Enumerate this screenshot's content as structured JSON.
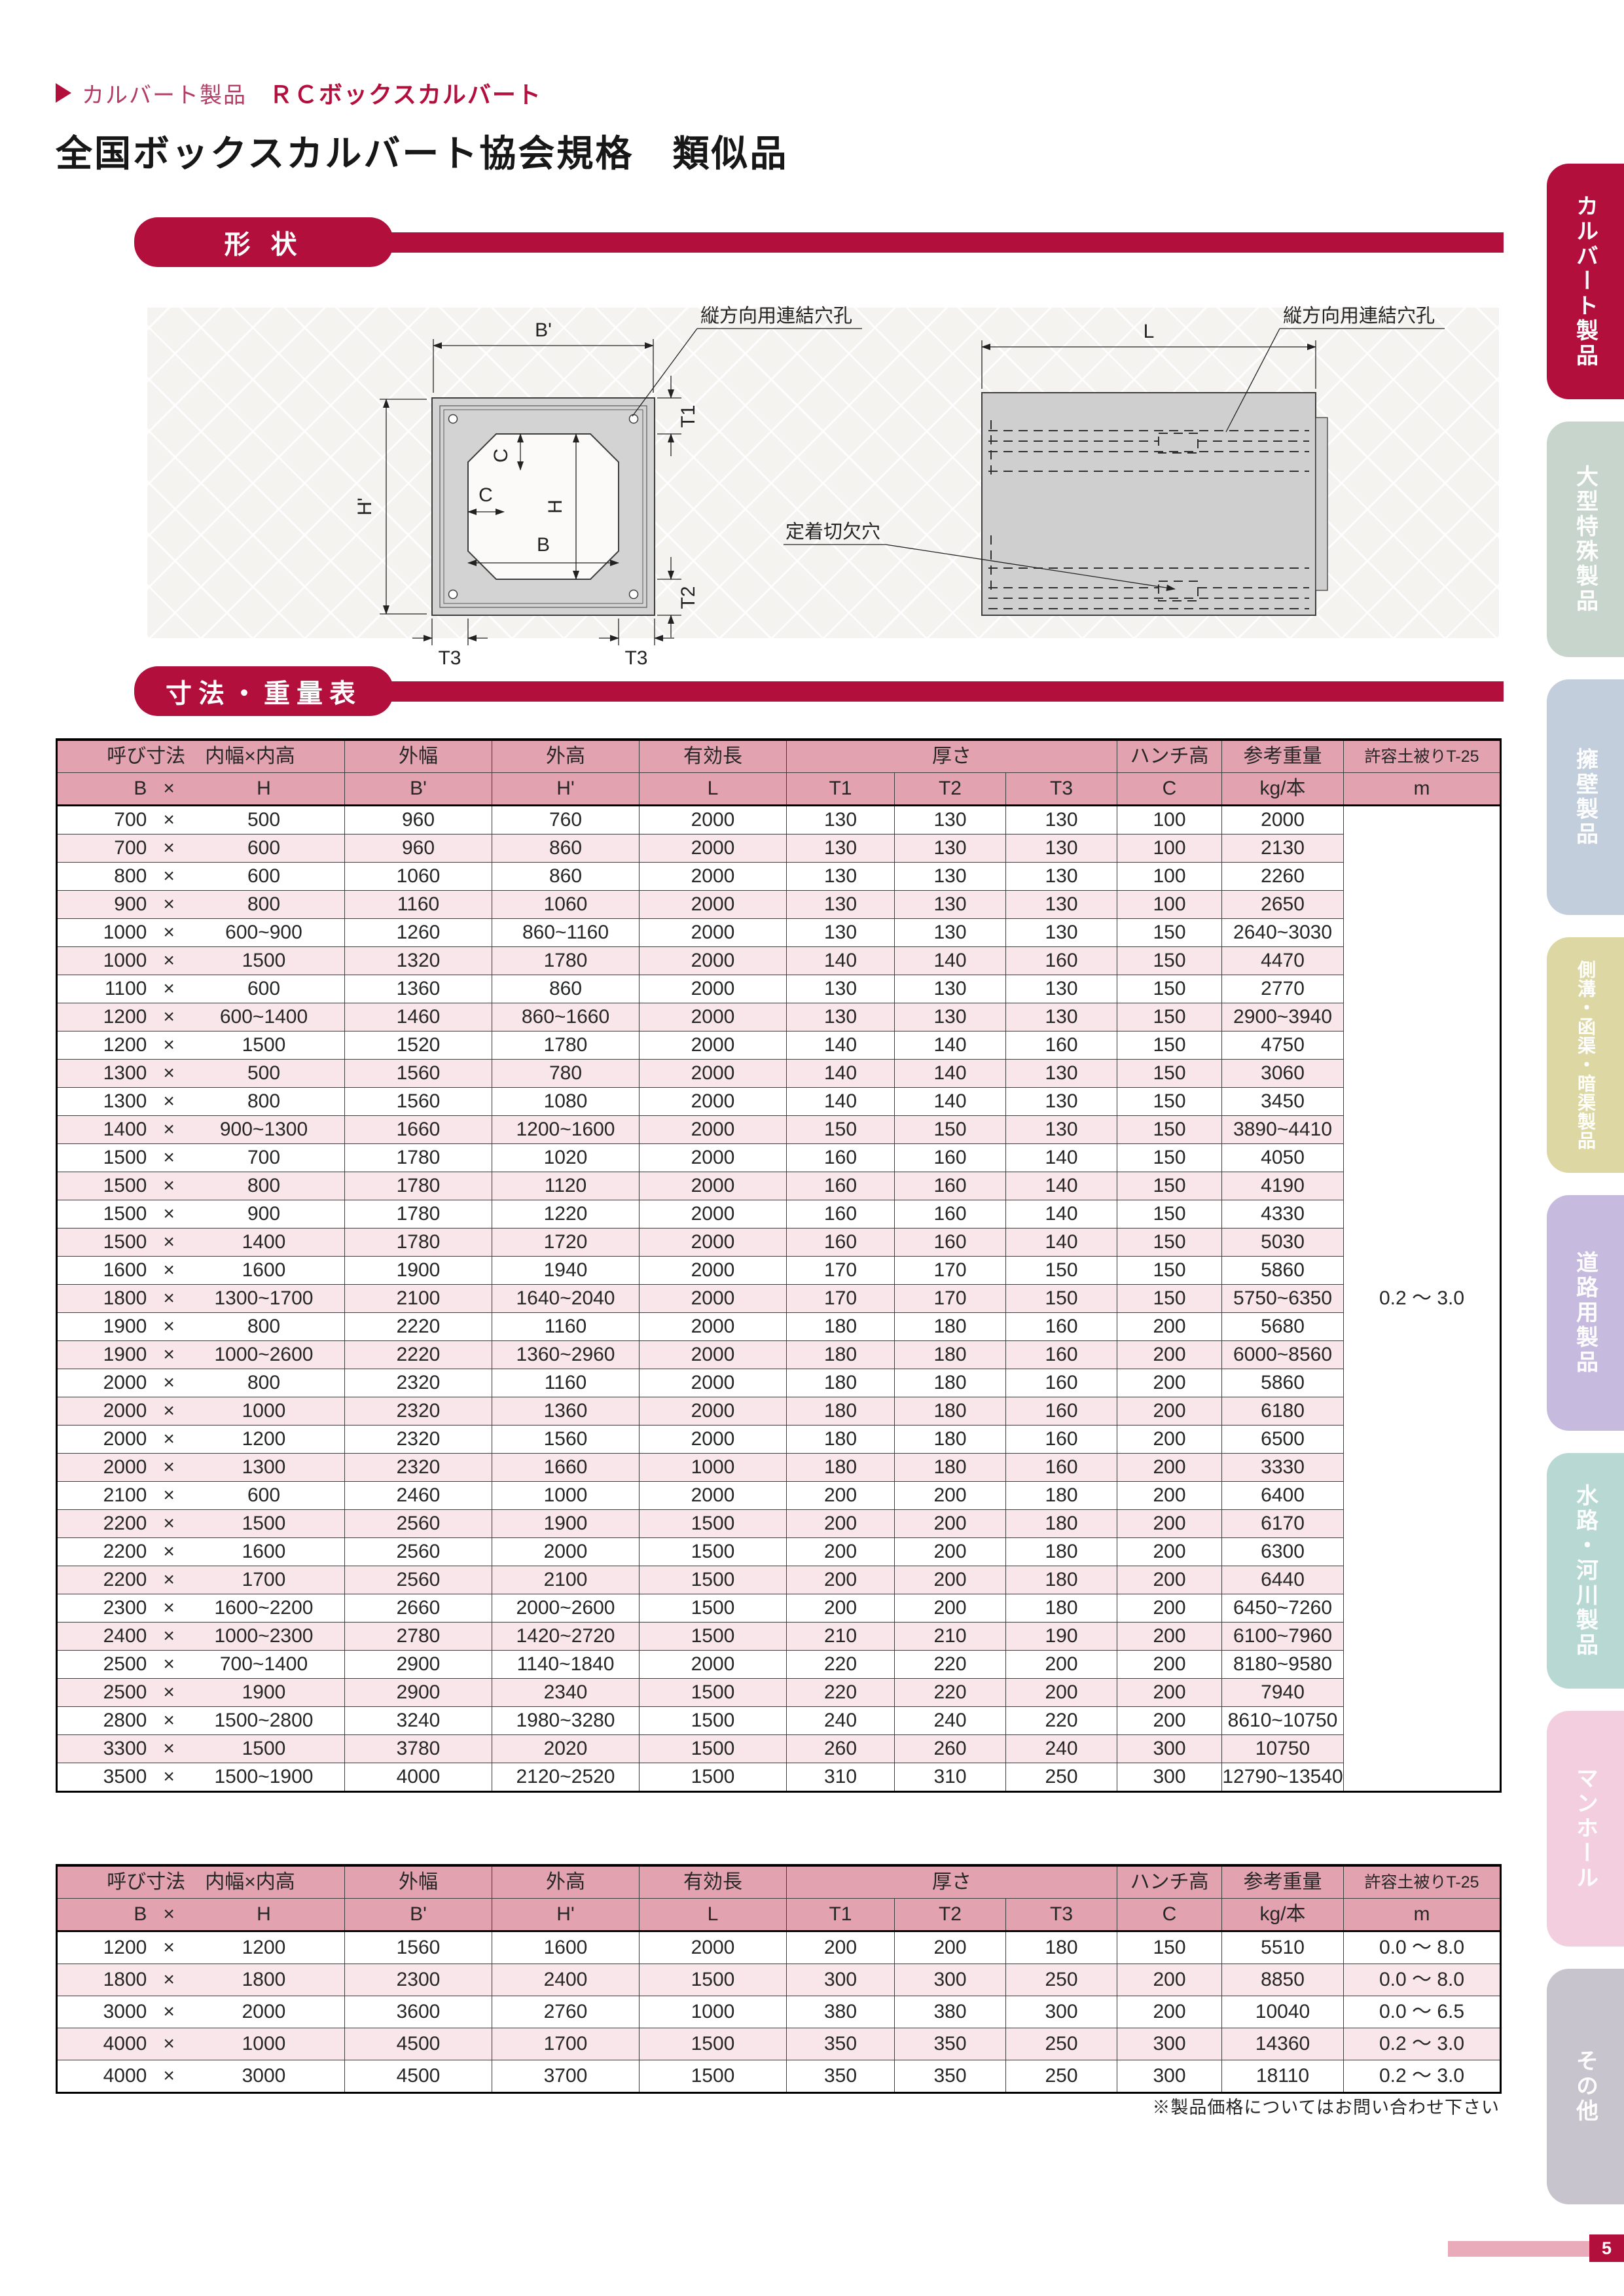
{
  "page": {
    "breadcrumb": {
      "category": "カルバート製品",
      "product": "ＲＣボックスカルバート"
    },
    "title": "全国ボックスカルバート協会規格　類似品",
    "sections": {
      "shape": "形 状",
      "dimensions": "寸法・重量表"
    },
    "footnote": "※製品価格についてはお問い合わせ下さい",
    "page_number": "5"
  },
  "colors": {
    "accent": "#b30f3d",
    "table_header_bg": "#e2a2b0",
    "row_alt_bg": "#f8e6ea",
    "page_bar_pink": "#e9aaba"
  },
  "diagram": {
    "labels": {
      "outer_width": "B'",
      "outer_height": "H'",
      "inner_width": "B",
      "inner_height": "H",
      "haunch_v": "C",
      "haunch_h": "C",
      "t1": "T1",
      "t2": "T2",
      "t3_left": "T3",
      "t3_right": "T3",
      "length": "L"
    },
    "annotations": {
      "connect_hole_left": "縦方向用連結穴孔",
      "connect_hole_right": "縦方向用連結穴孔",
      "anchor_notch": "定着切欠穴"
    }
  },
  "table_header": {
    "nominal": "呼び寸法　内幅×内高",
    "outer_width": "外幅",
    "outer_height": "外高",
    "effective_length": "有効長",
    "thickness": "厚さ",
    "haunch_height": "ハンチ高",
    "ref_weight": "参考重量",
    "allowable_cover": "許容土被りT-25",
    "sub": {
      "b": "B",
      "x": "×",
      "h": "H",
      "bp": "B'",
      "hp": "H'",
      "l": "L",
      "t1": "T1",
      "t2": "T2",
      "t3": "T3",
      "c": "C",
      "kg": "kg/本",
      "m": "m"
    }
  },
  "table1": {
    "multiply_sign": "×",
    "allowable_cover": "0.2 ～ 3.0",
    "rows": [
      [
        "700",
        "500",
        "960",
        "760",
        "2000",
        "130",
        "130",
        "130",
        "100",
        "2000"
      ],
      [
        "700",
        "600",
        "960",
        "860",
        "2000",
        "130",
        "130",
        "130",
        "100",
        "2130"
      ],
      [
        "800",
        "600",
        "1060",
        "860",
        "2000",
        "130",
        "130",
        "130",
        "100",
        "2260"
      ],
      [
        "900",
        "800",
        "1160",
        "1060",
        "2000",
        "130",
        "130",
        "130",
        "100",
        "2650"
      ],
      [
        "1000",
        "600~900",
        "1260",
        "860~1160",
        "2000",
        "130",
        "130",
        "130",
        "150",
        "2640~3030"
      ],
      [
        "1000",
        "1500",
        "1320",
        "1780",
        "2000",
        "140",
        "140",
        "160",
        "150",
        "4470"
      ],
      [
        "1100",
        "600",
        "1360",
        "860",
        "2000",
        "130",
        "130",
        "130",
        "150",
        "2770"
      ],
      [
        "1200",
        "600~1400",
        "1460",
        "860~1660",
        "2000",
        "130",
        "130",
        "130",
        "150",
        "2900~3940"
      ],
      [
        "1200",
        "1500",
        "1520",
        "1780",
        "2000",
        "140",
        "140",
        "160",
        "150",
        "4750"
      ],
      [
        "1300",
        "500",
        "1560",
        "780",
        "2000",
        "140",
        "140",
        "130",
        "150",
        "3060"
      ],
      [
        "1300",
        "800",
        "1560",
        "1080",
        "2000",
        "140",
        "140",
        "130",
        "150",
        "3450"
      ],
      [
        "1400",
        "900~1300",
        "1660",
        "1200~1600",
        "2000",
        "150",
        "150",
        "130",
        "150",
        "3890~4410"
      ],
      [
        "1500",
        "700",
        "1780",
        "1020",
        "2000",
        "160",
        "160",
        "140",
        "150",
        "4050"
      ],
      [
        "1500",
        "800",
        "1780",
        "1120",
        "2000",
        "160",
        "160",
        "140",
        "150",
        "4190"
      ],
      [
        "1500",
        "900",
        "1780",
        "1220",
        "2000",
        "160",
        "160",
        "140",
        "150",
        "4330"
      ],
      [
        "1500",
        "1400",
        "1780",
        "1720",
        "2000",
        "160",
        "160",
        "140",
        "150",
        "5030"
      ],
      [
        "1600",
        "1600",
        "1900",
        "1940",
        "2000",
        "170",
        "170",
        "150",
        "150",
        "5860"
      ],
      [
        "1800",
        "1300~1700",
        "2100",
        "1640~2040",
        "2000",
        "170",
        "170",
        "150",
        "150",
        "5750~6350"
      ],
      [
        "1900",
        "800",
        "2220",
        "1160",
        "2000",
        "180",
        "180",
        "160",
        "200",
        "5680"
      ],
      [
        "1900",
        "1000~2600",
        "2220",
        "1360~2960",
        "2000",
        "180",
        "180",
        "160",
        "200",
        "6000~8560"
      ],
      [
        "2000",
        "800",
        "2320",
        "1160",
        "2000",
        "180",
        "180",
        "160",
        "200",
        "5860"
      ],
      [
        "2000",
        "1000",
        "2320",
        "1360",
        "2000",
        "180",
        "180",
        "160",
        "200",
        "6180"
      ],
      [
        "2000",
        "1200",
        "2320",
        "1560",
        "2000",
        "180",
        "180",
        "160",
        "200",
        "6500"
      ],
      [
        "2000",
        "1300",
        "2320",
        "1660",
        "1000",
        "180",
        "180",
        "160",
        "200",
        "3330"
      ],
      [
        "2100",
        "600",
        "2460",
        "1000",
        "2000",
        "200",
        "200",
        "180",
        "200",
        "6400"
      ],
      [
        "2200",
        "1500",
        "2560",
        "1900",
        "1500",
        "200",
        "200",
        "180",
        "200",
        "6170"
      ],
      [
        "2200",
        "1600",
        "2560",
        "2000",
        "1500",
        "200",
        "200",
        "180",
        "200",
        "6300"
      ],
      [
        "2200",
        "1700",
        "2560",
        "2100",
        "1500",
        "200",
        "200",
        "180",
        "200",
        "6440"
      ],
      [
        "2300",
        "1600~2200",
        "2660",
        "2000~2600",
        "1500",
        "200",
        "200",
        "180",
        "200",
        "6450~7260"
      ],
      [
        "2400",
        "1000~2300",
        "2780",
        "1420~2720",
        "1500",
        "210",
        "210",
        "190",
        "200",
        "6100~7960"
      ],
      [
        "2500",
        "700~1400",
        "2900",
        "1140~1840",
        "2000",
        "220",
        "220",
        "200",
        "200",
        "8180~9580"
      ],
      [
        "2500",
        "1900",
        "2900",
        "2340",
        "1500",
        "220",
        "220",
        "200",
        "200",
        "7940"
      ],
      [
        "2800",
        "1500~2800",
        "3240",
        "1980~3280",
        "1500",
        "240",
        "240",
        "220",
        "200",
        "8610~10750"
      ],
      [
        "3300",
        "1500",
        "3780",
        "2020",
        "1500",
        "260",
        "260",
        "240",
        "300",
        "10750"
      ],
      [
        "3500",
        "1500~1900",
        "4000",
        "2120~2520",
        "1500",
        "310",
        "310",
        "250",
        "300",
        "12790~13540"
      ]
    ]
  },
  "table2": {
    "multiply_sign": "×",
    "rows": [
      [
        "1200",
        "1200",
        "1560",
        "1600",
        "2000",
        "200",
        "200",
        "180",
        "150",
        "5510",
        "0.0 ～ 8.0"
      ],
      [
        "1800",
        "1800",
        "2300",
        "2400",
        "1500",
        "300",
        "300",
        "250",
        "200",
        "8850",
        "0.0 ～ 8.0"
      ],
      [
        "3000",
        "2000",
        "3600",
        "2760",
        "1000",
        "380",
        "380",
        "300",
        "200",
        "10040",
        "0.0 ～ 6.5"
      ],
      [
        "4000",
        "1000",
        "4500",
        "1700",
        "1500",
        "350",
        "350",
        "250",
        "300",
        "14360",
        "0.2 ～ 3.0"
      ],
      [
        "4000",
        "3000",
        "4500",
        "3700",
        "1500",
        "350",
        "350",
        "250",
        "300",
        "18110",
        "0.2 ～ 3.0"
      ]
    ]
  },
  "sidebar": {
    "items": [
      {
        "label": "カルバート製品",
        "color": "#b30f3d",
        "active": true
      },
      {
        "label": "大型特殊製品",
        "color": "#c8d5cc",
        "active": false
      },
      {
        "label": "擁壁製品",
        "color": "#c2cedb",
        "active": false
      },
      {
        "label": "側溝・函渠・暗渠製品",
        "color": "#ddd7a4",
        "active": false
      },
      {
        "label": "道路用製品",
        "color": "#c6bbdf",
        "active": false
      },
      {
        "label": "水路・河川製品",
        "color": "#b8d8d3",
        "active": false
      },
      {
        "label": "マンホール",
        "color": "#f3cede",
        "active": false
      },
      {
        "label": "その他",
        "color": "#c7c4cd",
        "active": false
      }
    ]
  }
}
